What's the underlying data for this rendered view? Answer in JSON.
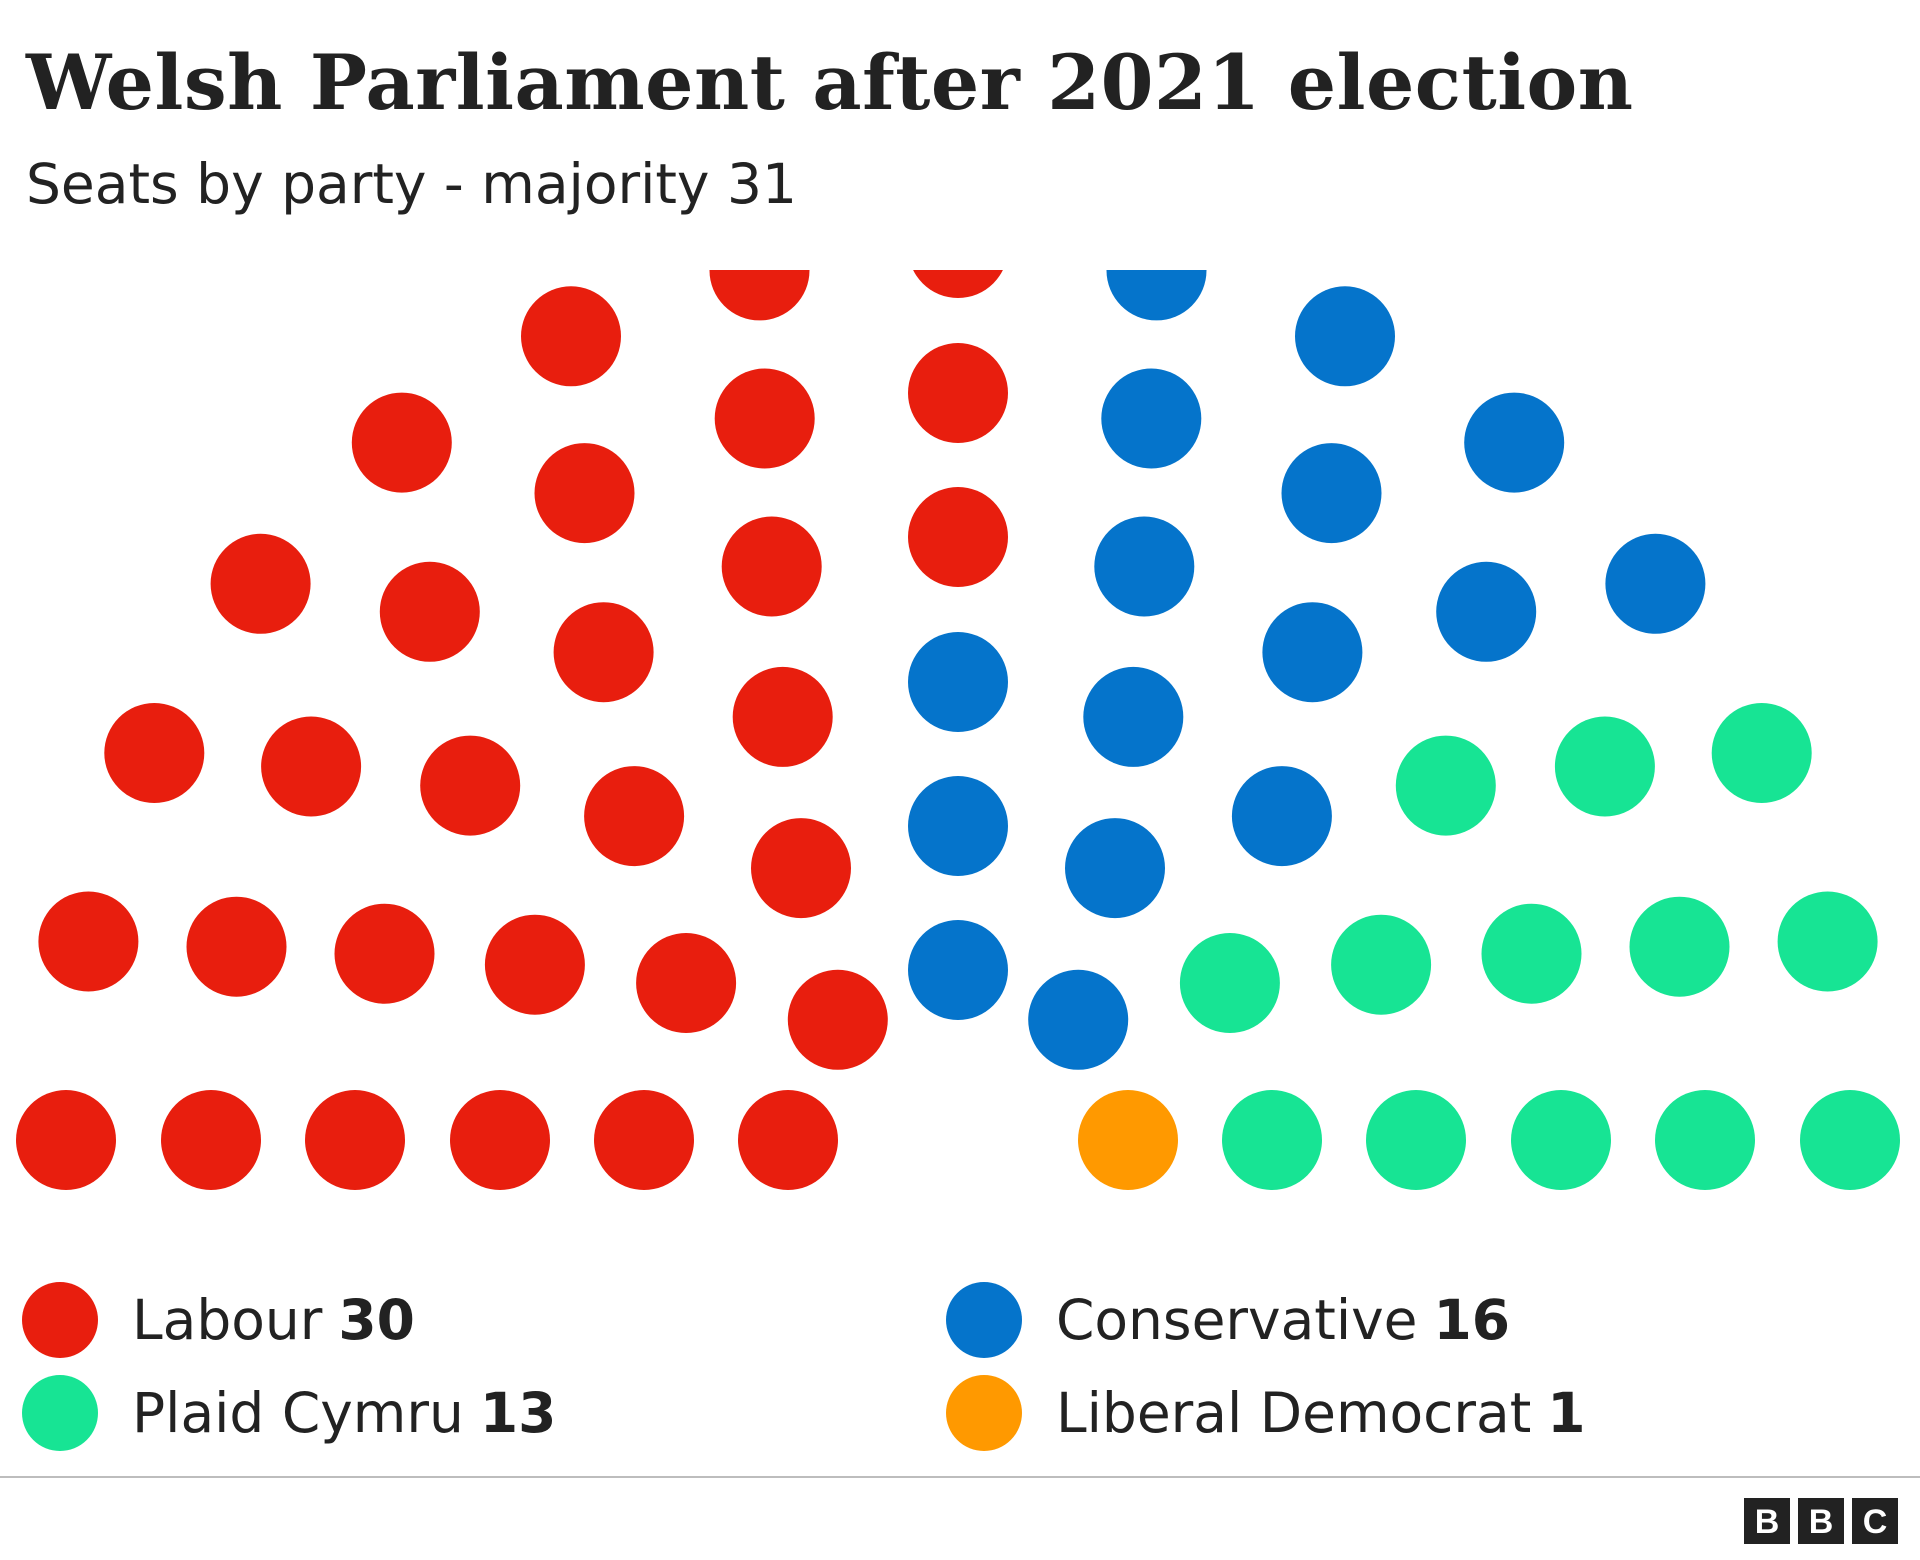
{
  "title": "Welsh Parliament after 2021 election",
  "subtitle": "Seats by party - majority 31",
  "chart_data": {
    "type": "parliament",
    "title": "Welsh Parliament after 2021 election",
    "subtitle": "Seats by party - majority 31",
    "total_seats": 60,
    "majority": 31,
    "series": [
      {
        "name": "Labour",
        "seats": 30,
        "color": "#e81e0e"
      },
      {
        "name": "Conservative",
        "seats": 16,
        "color": "#0574cb"
      },
      {
        "name": "Plaid Cymru",
        "seats": 13,
        "color": "#17e494"
      },
      {
        "name": "Liberal Democrat",
        "seats": 1,
        "color": "#ff9900"
      }
    ],
    "legend_position": "bottom"
  },
  "legend": [
    {
      "label": "Labour",
      "value": "30",
      "color": "#e81e0e"
    },
    {
      "label": "Conservative",
      "value": "16",
      "color": "#0574cb"
    },
    {
      "label": "Plaid Cymru",
      "value": "13",
      "color": "#17e494"
    },
    {
      "label": "Liberal Democrat",
      "value": "1",
      "color": "#ff9900"
    }
  ],
  "logo": {
    "letters": [
      "B",
      "B",
      "C"
    ],
    "icon": "bbc-logo-icon"
  }
}
